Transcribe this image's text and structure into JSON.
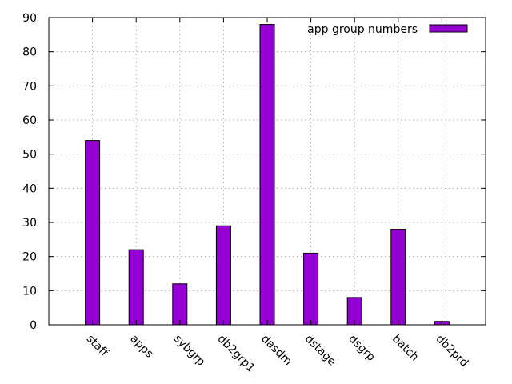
{
  "chart_data": {
    "type": "bar",
    "title": "",
    "xlabel": "",
    "ylabel": "",
    "categories": [
      "staff",
      "apps",
      "sybgrp",
      "db2grp1",
      "dasdm",
      "dstage",
      "dsgrp",
      "batch",
      "db2prd"
    ],
    "series": [
      {
        "name": "app group numbers",
        "values": [
          54,
          22,
          12,
          29,
          88,
          21,
          8,
          28,
          1
        ]
      }
    ],
    "ylim": [
      0,
      90
    ],
    "yticks": [
      0,
      10,
      20,
      30,
      40,
      50,
      60,
      70,
      80,
      90
    ],
    "grid": true,
    "legend_position": "top-right",
    "colors": {
      "bar_fill": "#9400d3",
      "bar_stroke": "#000000",
      "grid": "#a0a0a0"
    }
  }
}
